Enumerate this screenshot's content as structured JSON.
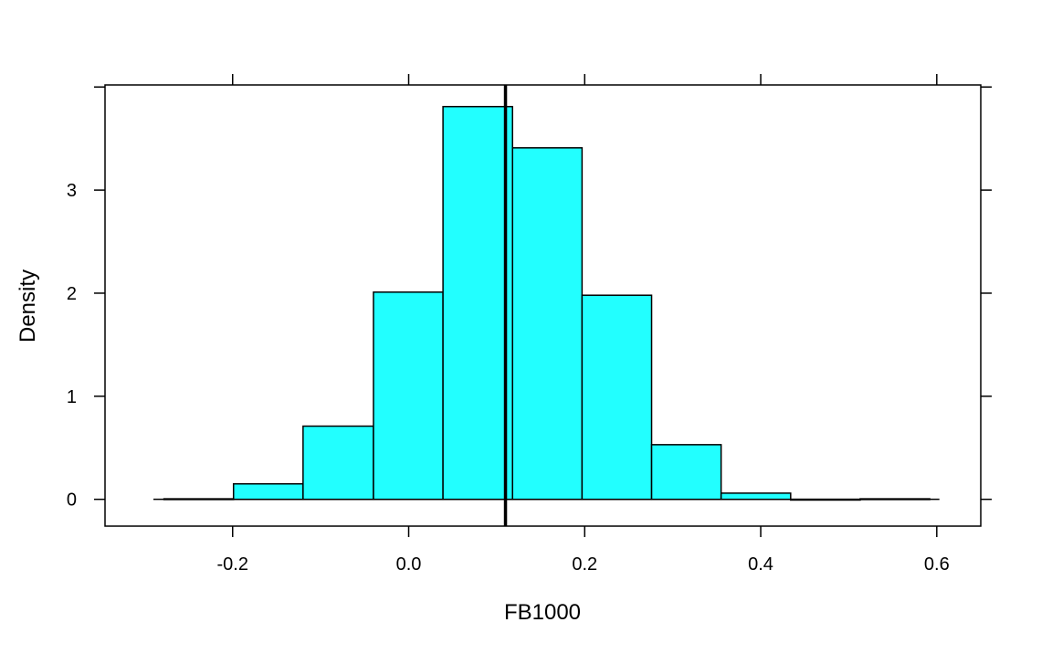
{
  "chart_data": {
    "type": "bar",
    "subtype": "histogram",
    "title": "",
    "xlabel": "FB1000",
    "ylabel": "Density",
    "xlim": [
      -0.345,
      0.65
    ],
    "ylim": [
      -0.26,
      4.02
    ],
    "x_ticks": [
      -0.2,
      0.0,
      0.2,
      0.4,
      0.6
    ],
    "x_tick_labels": [
      "-0.2",
      "0.0",
      "0.2",
      "0.4",
      "0.6"
    ],
    "y_ticks": [
      0,
      1,
      2,
      3
    ],
    "y_tick_labels": [
      "0",
      "1",
      "2",
      "3"
    ],
    "bins": [
      {
        "start": -0.278,
        "end": -0.199,
        "density": 0.005
      },
      {
        "start": -0.199,
        "end": -0.12,
        "density": 0.15
      },
      {
        "start": -0.12,
        "end": -0.04,
        "density": 0.71
      },
      {
        "start": -0.04,
        "end": 0.039,
        "density": 2.01
      },
      {
        "start": 0.039,
        "end": 0.118,
        "density": 3.81
      },
      {
        "start": 0.118,
        "end": 0.197,
        "density": 3.41
      },
      {
        "start": 0.197,
        "end": 0.276,
        "density": 1.98
      },
      {
        "start": 0.276,
        "end": 0.355,
        "density": 0.53
      },
      {
        "start": 0.355,
        "end": 0.434,
        "density": 0.06
      },
      {
        "start": 0.434,
        "end": 0.513,
        "density": 0.0
      },
      {
        "start": 0.513,
        "end": 0.592,
        "density": 0.005
      }
    ],
    "baseline_range": [
      -0.29,
      0.603
    ],
    "vertical_line_x": 0.11,
    "bar_color": "#22ffff",
    "edge_color": "#000000",
    "grid": false,
    "legend": "none"
  }
}
